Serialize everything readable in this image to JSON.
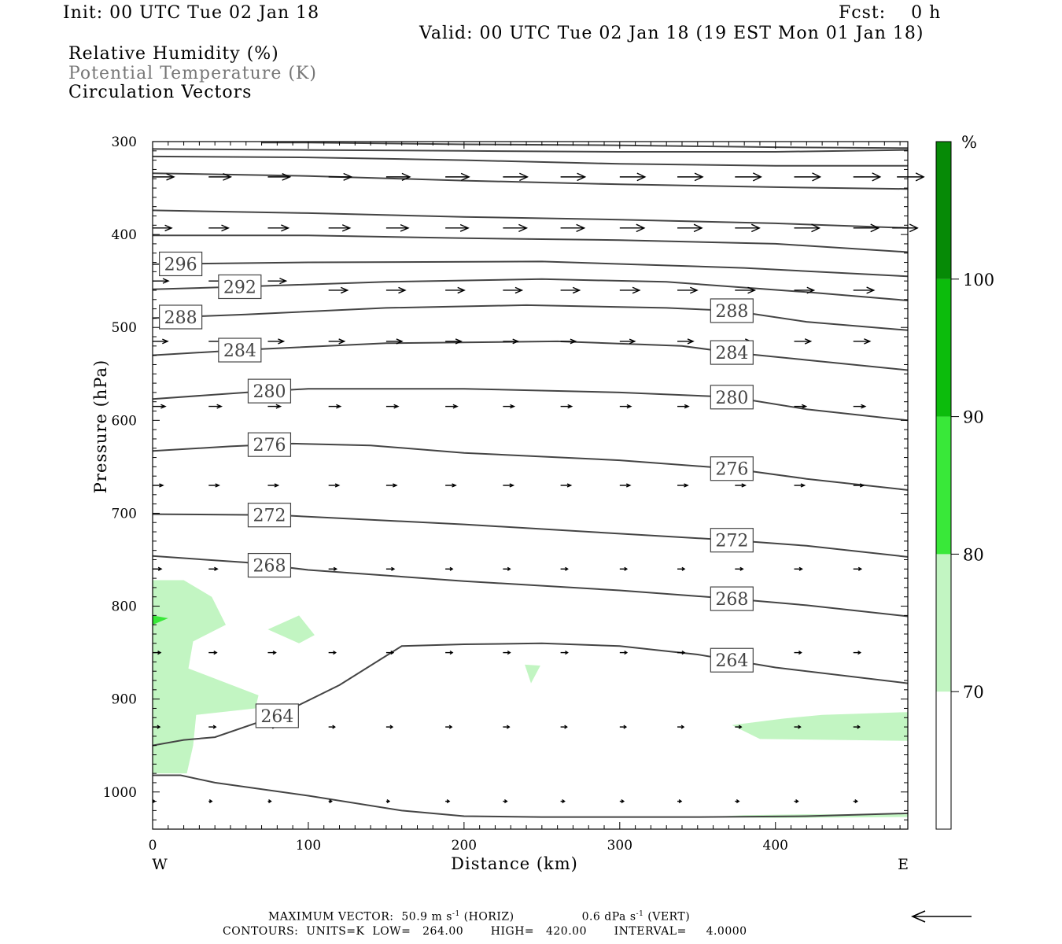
{
  "header": {
    "init": "Init: 00 UTC Tue 02 Jan 18",
    "fcst": "Fcst:    0 h",
    "valid": "Valid: 00 UTC Tue 02 Jan 18 (19 EST Mon 01 Jan 18)",
    "fields": [
      "Relative Humidity (%)",
      "Potential Temperature (K)",
      "Circulation Vectors"
    ]
  },
  "colors": {
    "rh_70": "#c2f5c2",
    "rh_80": "#39e839",
    "rh_90": "#0cbc0c",
    "rh_100": "#068a06",
    "contour": "#444444",
    "legend_gray": "#777777"
  },
  "chart_data": {
    "type": "cross-section",
    "xlabel": "Distance (km)",
    "ylabel": "Pressure (hPa)",
    "xlim": [
      0,
      485
    ],
    "ylim": [
      1040,
      300
    ],
    "y_scale": "pressure (inverted)",
    "x_ticks": [
      0,
      100,
      200,
      300,
      400
    ],
    "y_ticks": [
      300,
      400,
      500,
      600,
      700,
      800,
      900,
      1000
    ],
    "x_end_labels": {
      "left": "W",
      "right": "E"
    },
    "colorbar": {
      "unit": "%",
      "levels": [
        70,
        80,
        90,
        100
      ],
      "colors": [
        "#ffffff",
        "#c2f5c2",
        "#39e839",
        "#0cbc0c",
        "#068a06"
      ]
    },
    "theta_contours": [
      {
        "value": 264,
        "labeled_at_km": [
          80,
          372
        ]
      },
      {
        "value": 268,
        "labeled_at_km": [
          75,
          372
        ]
      },
      {
        "value": 272,
        "labeled_at_km": [
          75,
          372
        ]
      },
      {
        "value": 276,
        "labeled_at_km": [
          75,
          372
        ]
      },
      {
        "value": 280,
        "labeled_at_km": [
          75,
          372
        ]
      },
      {
        "value": 284,
        "labeled_at_km": [
          56,
          372
        ]
      },
      {
        "value": 288,
        "labeled_at_km": [
          18,
          372
        ]
      },
      {
        "value": 292,
        "labeled_at_km": [
          56
        ]
      },
      {
        "value": 296,
        "labeled_at_km": [
          18
        ]
      }
    ],
    "theta_curves": [
      {
        "pts": [
          [
            0,
            982
          ],
          [
            18,
            982
          ],
          [
            40,
            990
          ],
          [
            100,
            1004
          ],
          [
            160,
            1020
          ],
          [
            200,
            1026
          ],
          [
            250,
            1027
          ],
          [
            350,
            1027
          ],
          [
            420,
            1026
          ],
          [
            485,
            1023
          ]
        ]
      },
      {
        "pts": [
          [
            0,
            950
          ],
          [
            20,
            944
          ],
          [
            40,
            941
          ],
          [
            80,
            918
          ],
          [
            120,
            885
          ],
          [
            160,
            843
          ],
          [
            200,
            841
          ],
          [
            250,
            840
          ],
          [
            300,
            843
          ],
          [
            350,
            852
          ],
          [
            400,
            866
          ],
          [
            485,
            883
          ]
        ]
      },
      {
        "pts": [
          [
            0,
            746
          ],
          [
            60,
            753
          ],
          [
            100,
            761
          ],
          [
            200,
            773
          ],
          [
            300,
            783
          ],
          [
            372,
            792
          ],
          [
            420,
            799
          ],
          [
            485,
            811
          ]
        ]
      },
      {
        "pts": [
          [
            0,
            701
          ],
          [
            80,
            702
          ],
          [
            200,
            712
          ],
          [
            300,
            722
          ],
          [
            372,
            729
          ],
          [
            420,
            735
          ],
          [
            485,
            747
          ]
        ]
      },
      {
        "pts": [
          [
            0,
            633
          ],
          [
            50,
            628
          ],
          [
            90,
            625
          ],
          [
            140,
            627
          ],
          [
            200,
            635
          ],
          [
            300,
            643
          ],
          [
            372,
            652
          ],
          [
            420,
            663
          ],
          [
            485,
            675
          ]
        ]
      },
      {
        "pts": [
          [
            0,
            577
          ],
          [
            60,
            570
          ],
          [
            100,
            566
          ],
          [
            200,
            566
          ],
          [
            300,
            570
          ],
          [
            372,
            575
          ],
          [
            420,
            588
          ],
          [
            485,
            600
          ]
        ]
      },
      {
        "pts": [
          [
            0,
            530
          ],
          [
            60,
            524
          ],
          [
            150,
            517
          ],
          [
            260,
            515
          ],
          [
            340,
            520
          ],
          [
            372,
            527
          ],
          [
            420,
            535
          ],
          [
            485,
            546
          ]
        ]
      },
      {
        "pts": [
          [
            0,
            490
          ],
          [
            60,
            486
          ],
          [
            150,
            479
          ],
          [
            240,
            476
          ],
          [
            330,
            479
          ],
          [
            372,
            482
          ],
          [
            420,
            494
          ],
          [
            485,
            503
          ]
        ]
      },
      {
        "pts": [
          [
            0,
            459
          ],
          [
            60,
            456
          ],
          [
            150,
            451
          ],
          [
            250,
            448
          ],
          [
            330,
            451
          ],
          [
            420,
            462
          ],
          [
            485,
            471
          ]
        ]
      },
      {
        "pts": [
          [
            0,
            432
          ],
          [
            100,
            430
          ],
          [
            250,
            429
          ],
          [
            380,
            436
          ],
          [
            485,
            445
          ]
        ]
      },
      {
        "pts": [
          [
            0,
            401
          ],
          [
            100,
            401
          ],
          [
            200,
            404
          ],
          [
            300,
            406
          ],
          [
            400,
            410
          ],
          [
            485,
            419
          ]
        ]
      },
      {
        "pts": [
          [
            0,
            374
          ],
          [
            100,
            377
          ],
          [
            200,
            381
          ],
          [
            300,
            384
          ],
          [
            400,
            388
          ],
          [
            485,
            393
          ]
        ]
      },
      {
        "pts": [
          [
            0,
            334
          ],
          [
            100,
            337
          ],
          [
            200,
            342
          ],
          [
            300,
            346
          ],
          [
            400,
            349
          ],
          [
            485,
            351
          ]
        ]
      },
      {
        "pts": [
          [
            0,
            316
          ],
          [
            100,
            317
          ],
          [
            200,
            320
          ],
          [
            300,
            324
          ],
          [
            400,
            326
          ],
          [
            485,
            326
          ]
        ]
      },
      {
        "pts": [
          [
            0,
            308
          ],
          [
            100,
            309
          ],
          [
            200,
            310
          ],
          [
            300,
            311
          ],
          [
            400,
            311
          ],
          [
            485,
            309
          ]
        ]
      },
      {
        "pts": [
          [
            70,
            301
          ],
          [
            100,
            301
          ],
          [
            200,
            303
          ],
          [
            300,
            304
          ],
          [
            400,
            306
          ],
          [
            485,
            307
          ]
        ]
      }
    ],
    "rh_regions": [
      {
        "level": 70,
        "pts": [
          [
            0,
            772
          ],
          [
            20,
            772
          ],
          [
            38,
            790
          ],
          [
            47,
            820
          ],
          [
            26,
            838
          ],
          [
            23,
            867
          ],
          [
            68,
            896
          ],
          [
            66,
            910
          ],
          [
            28,
            917
          ],
          [
            26,
            950
          ],
          [
            22,
            980
          ],
          [
            0,
            980
          ]
        ]
      },
      {
        "level": 70,
        "pts": [
          [
            74,
            825
          ],
          [
            94,
            810
          ],
          [
            104,
            831
          ],
          [
            94,
            840
          ]
        ]
      },
      {
        "level": 70,
        "pts": [
          [
            239,
            863
          ],
          [
            249,
            864
          ],
          [
            243,
            883
          ]
        ]
      },
      {
        "level": 70,
        "pts": [
          [
            372,
            928
          ],
          [
            405,
            921
          ],
          [
            430,
            917
          ],
          [
            485,
            914
          ],
          [
            485,
            945
          ],
          [
            390,
            943
          ]
        ]
      },
      {
        "level": 70,
        "pts": [
          [
            355,
            1027
          ],
          [
            380,
            1025
          ],
          [
            420,
            1024
          ],
          [
            485,
            1024
          ],
          [
            485,
            1027
          ],
          [
            400,
            1028
          ]
        ]
      },
      {
        "level": 80,
        "pts": [
          [
            0,
            810
          ],
          [
            10,
            813
          ],
          [
            0,
            820
          ]
        ]
      }
    ],
    "vectors": [
      {
        "p": 338,
        "x": [
          0,
          36,
          74,
          113,
          150,
          188,
          225,
          262,
          300,
          337,
          374,
          412,
          450,
          478
        ],
        "len": [
          27,
          28,
          28,
          29,
          30,
          30,
          31,
          31,
          32,
          32,
          33,
          33,
          34,
          34
        ]
      },
      {
        "p": 393,
        "x": [
          0,
          36,
          74,
          113,
          150,
          188,
          225,
          262,
          300,
          337,
          374,
          412,
          450,
          475
        ],
        "len": [
          24,
          25,
          26,
          27,
          28,
          29,
          30,
          30,
          31,
          31,
          31,
          32,
          32,
          32
        ]
      },
      {
        "p": 450,
        "x": [
          0,
          36,
          74
        ],
        "len": [
          20,
          22,
          23
        ]
      },
      {
        "p": 460,
        "x": [
          113,
          150,
          188,
          225,
          262,
          300,
          337,
          374,
          412,
          450
        ],
        "len": [
          24,
          24,
          24,
          24,
          24,
          25,
          25,
          25,
          25,
          26
        ]
      },
      {
        "p": 515,
        "x": [
          0,
          36,
          74,
          113,
          150,
          188,
          225,
          262,
          300,
          337,
          374,
          412,
          450
        ],
        "len": [
          19,
          19,
          20,
          20,
          20,
          20,
          19,
          19,
          19,
          20,
          20,
          21,
          21
        ]
      },
      {
        "p": 585,
        "x": [
          0,
          36,
          74,
          113,
          150,
          188,
          225,
          262,
          300,
          337,
          374,
          412,
          450
        ],
        "len": [
          16,
          16,
          16,
          15,
          15,
          15,
          14,
          14,
          14,
          14,
          14,
          15,
          15
        ]
      },
      {
        "p": 670,
        "x": [
          0,
          36,
          74,
          113,
          150,
          188,
          225,
          262,
          300,
          337,
          374,
          412,
          450
        ],
        "len": [
          13,
          13,
          13,
          13,
          13,
          13,
          13,
          13,
          13,
          13,
          13,
          13,
          13
        ]
      },
      {
        "p": 760,
        "x": [
          0,
          36,
          74,
          113,
          150,
          188,
          225,
          262,
          300,
          337,
          374,
          412,
          450
        ],
        "len": [
          11,
          11,
          11,
          10,
          10,
          9,
          9,
          9,
          9,
          9,
          10,
          10,
          10
        ]
      },
      {
        "p": 850,
        "x": [
          0,
          36,
          74,
          113,
          150,
          188,
          225,
          262,
          300,
          337,
          374,
          412,
          450
        ],
        "len": [
          10,
          10,
          10,
          9,
          9,
          9,
          9,
          9,
          9,
          9,
          9,
          9,
          9
        ]
      },
      {
        "p": 930,
        "x": [
          0,
          36,
          74,
          113,
          150,
          188,
          225,
          262,
          300,
          337,
          374,
          412,
          450
        ],
        "len": [
          9,
          9,
          9,
          8,
          8,
          8,
          8,
          8,
          8,
          8,
          8,
          8,
          8
        ]
      },
      {
        "p": 1010,
        "x": [
          0,
          36,
          74,
          113,
          150,
          188,
          225,
          262,
          300,
          337,
          374,
          412,
          450
        ],
        "len": [
          3,
          4,
          4,
          4,
          4,
          5,
          5,
          5,
          5,
          5,
          5,
          5,
          5
        ]
      }
    ]
  },
  "footer": {
    "max_vector": "MAXIMUM VECTOR:  50.9 m s",
    "horiz": "(HORIZ)",
    "vert_value": "0.6 dPa s",
    "vert": "(VERT)",
    "exponent": "-1",
    "contours": "CONTOURS:  UNITS=K  LOW=   264.00       HIGH=   420.00       INTERVAL=     4.0000"
  }
}
